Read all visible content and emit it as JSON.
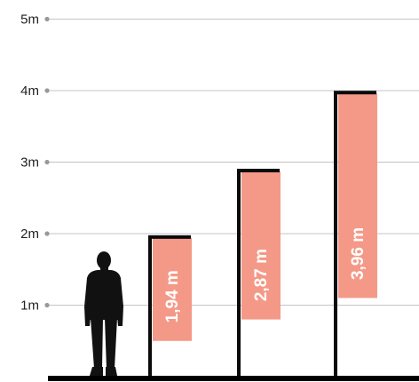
{
  "chart_data": {
    "type": "bar",
    "ylim": [
      0,
      5
    ],
    "y_ticks": [
      {
        "value": 1,
        "label": "1m"
      },
      {
        "value": 2,
        "label": "2m"
      },
      {
        "value": 3,
        "label": "3m"
      },
      {
        "value": 4,
        "label": "4m"
      },
      {
        "value": 5,
        "label": "5m"
      }
    ],
    "grid": true,
    "bars": [
      {
        "value": 1.94,
        "label": "1,94 m",
        "flag_bottom": 0.5
      },
      {
        "value": 2.87,
        "label": "2,87 m",
        "flag_bottom": 0.8
      },
      {
        "value": 3.96,
        "label": "3,96 m",
        "flag_bottom": 1.1
      }
    ]
  },
  "colors": {
    "flag": "#f49987",
    "pole": "#0a0a0a",
    "grid": "#c4c4c4",
    "tick_dot": "#999999",
    "silhouette": "#111111",
    "ground": "#000000"
  },
  "icons": {
    "person": "person-silhouette-icon"
  }
}
